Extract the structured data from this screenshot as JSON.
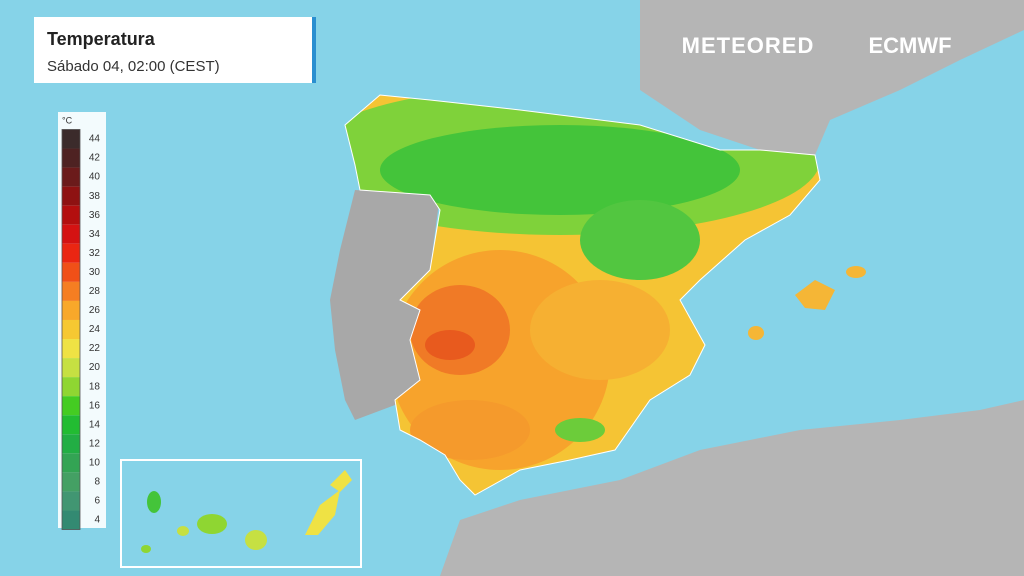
{
  "header": {
    "title": "Temperatura",
    "subtitle": "Sábado 04, 02:00 (CEST)"
  },
  "logos": {
    "brand": "METEORED",
    "partner": "ECMWF"
  },
  "legend": {
    "unit": "°C",
    "steps": [
      {
        "value": 44,
        "color": "#3b2b2b"
      },
      {
        "value": 42,
        "color": "#4e2222"
      },
      {
        "value": 40,
        "color": "#6b1b1b"
      },
      {
        "value": 38,
        "color": "#8e1212"
      },
      {
        "value": 36,
        "color": "#b30f0f"
      },
      {
        "value": 34,
        "color": "#d41212"
      },
      {
        "value": 32,
        "color": "#ea2612"
      },
      {
        "value": 30,
        "color": "#f05018"
      },
      {
        "value": 28,
        "color": "#f57e22"
      },
      {
        "value": 26,
        "color": "#f8a82a"
      },
      {
        "value": 24,
        "color": "#f6c832"
      },
      {
        "value": 22,
        "color": "#efe244"
      },
      {
        "value": 20,
        "color": "#c6e042"
      },
      {
        "value": 18,
        "color": "#8fd632"
      },
      {
        "value": 16,
        "color": "#44cc22"
      },
      {
        "value": 14,
        "color": "#22bc32"
      },
      {
        "value": 12,
        "color": "#22ae44"
      },
      {
        "value": 10,
        "color": "#33a454"
      },
      {
        "value": 8,
        "color": "#44a064"
      },
      {
        "value": 6,
        "color": "#419672"
      },
      {
        "value": 4,
        "color": "#338a72"
      }
    ]
  }
}
